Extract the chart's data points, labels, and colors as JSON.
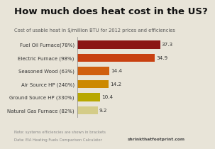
{
  "title": "How much does heat cost in the US?",
  "subtitle": "Cost of usable heat in $/million BTU for 2012 prices and efficiencies",
  "categories": [
    "Fuel Oil Furnace(78%)",
    "Electric Furnace (98%)",
    "Seasoned Wood (63%)",
    "Air Source HP (240%)",
    "Ground Source HP (330%)",
    "Natural Gas Furnace (82%)"
  ],
  "values": [
    37.3,
    34.9,
    14.4,
    14.2,
    10.4,
    9.2
  ],
  "bar_colors": [
    "#8B1515",
    "#C84010",
    "#D06010",
    "#CC8800",
    "#B8A800",
    "#D4CC88"
  ],
  "note": "Note: systems efficiencies are shown in brackets",
  "source": "Data: EIA Heating Fuels Comparison Calculator",
  "watermark": "shrinkthatfootprint.com",
  "background_color": "#E8E4D8",
  "title_fontsize": 9.5,
  "subtitle_fontsize": 4.8,
  "label_fontsize": 5.0,
  "value_fontsize": 5.2,
  "note_fontsize": 3.8,
  "watermark_fontsize": 4.2,
  "xlim": [
    0,
    44
  ]
}
